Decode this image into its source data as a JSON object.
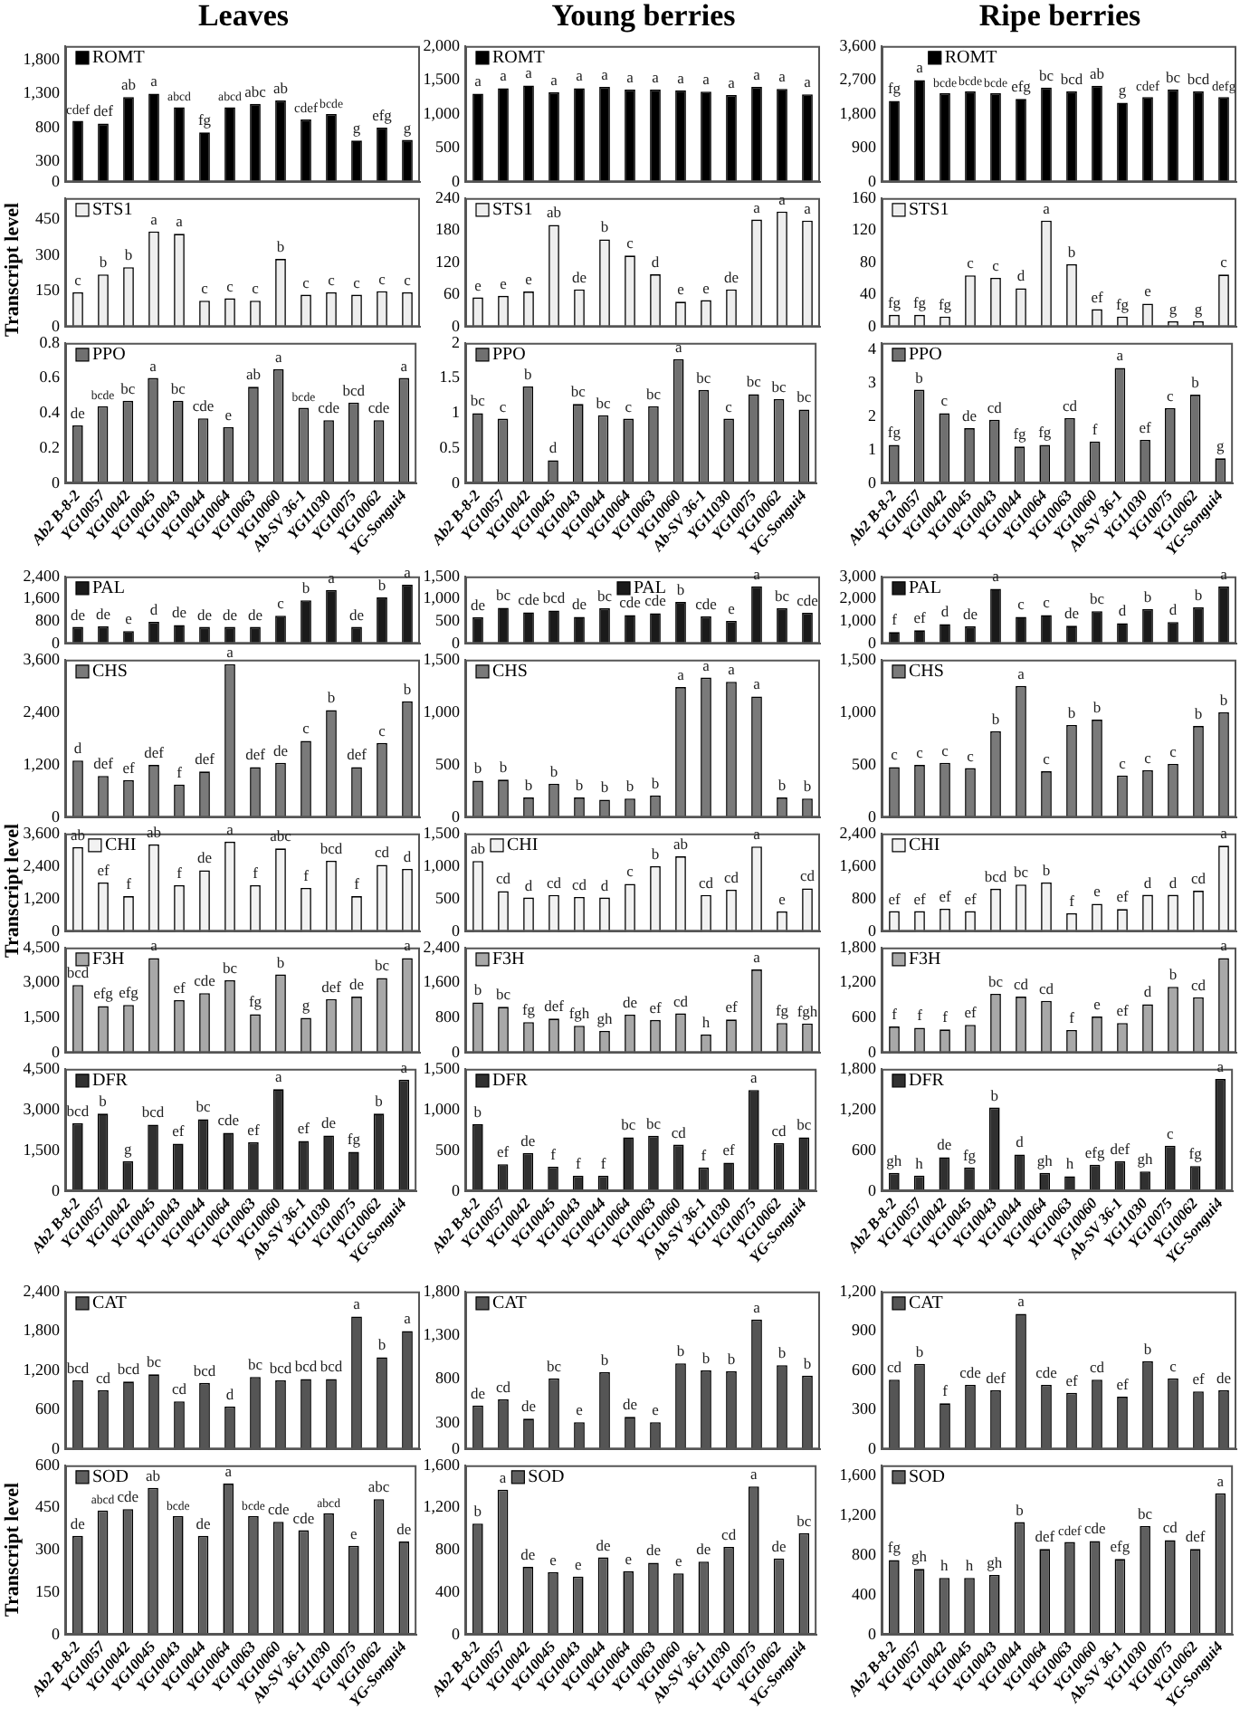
{
  "chart_data": [
    {
      "type": "bar",
      "title": "Leaves",
      "categories": [
        null,
        null,
        null,
        null,
        null,
        null,
        null,
        null,
        null,
        null,
        null,
        null,
        null,
        null
      ],
      "series": [
        {
          "name": "ROMT",
          "color": "#000000",
          "values": [
            900,
            860,
            1250,
            1300,
            1100,
            730,
            1100,
            1150,
            1200,
            920,
            1000,
            610,
            800,
            620
          ],
          "value_labels": [
            "cdef",
            "def",
            "ab",
            "a",
            "abcd",
            "fg",
            "abcd",
            "abc",
            "ab",
            "cdef",
            "bcde",
            "g",
            "efg",
            "g"
          ]
        }
      ],
      "ylim": [
        0,
        2000
      ],
      "yticks": [
        0,
        300,
        800,
        {
          "value": 1300,
          "label": "1,300"
        },
        {
          "value": 1800,
          "label": "1,800"
        }
      ],
      "legend": "top left"
    },
    {
      "type": "bar",
      "title": "Young berries",
      "categories": [
        null,
        null,
        null,
        null,
        null,
        null,
        null,
        null,
        null,
        null,
        null,
        null,
        null,
        null
      ],
      "series": [
        {
          "name": "ROMT",
          "color": "#000000",
          "values": [
            1300,
            1380,
            1420,
            1320,
            1380,
            1400,
            1360,
            1360,
            1350,
            1330,
            1280,
            1400,
            1370,
            1290
          ],
          "value_labels": [
            "a",
            "a",
            "a",
            "a",
            "a",
            "a",
            "a",
            "a",
            "a",
            "a",
            "a",
            "a",
            "a",
            "a"
          ]
        }
      ],
      "ylim": [
        0,
        2000
      ],
      "yticks": [
        0,
        500,
        {
          "value": 1000,
          "label": "1,000"
        },
        {
          "value": 1500,
          "label": "1,500"
        },
        {
          "value": 2000,
          "label": "2,000"
        }
      ],
      "legend": "top left"
    },
    {
      "type": "bar",
      "title": "Ripe berries",
      "categories": [
        null,
        null,
        null,
        null,
        null,
        null,
        null,
        null,
        null,
        null,
        null,
        null,
        null,
        null
      ],
      "series": [
        {
          "name": "ROMT",
          "color": "#000000",
          "values": [
            2150,
            2700,
            2350,
            2400,
            2350,
            2200,
            2500,
            2400,
            2550,
            2100,
            2250,
            2450,
            2400,
            2250
          ],
          "value_labels": [
            "fg",
            "a",
            "bcde",
            "bcde",
            "bcde",
            "efg",
            "bc",
            "bcd",
            "ab",
            "g",
            "cdef",
            "bc",
            "bcd",
            "defg"
          ]
        }
      ],
      "ylim": [
        0,
        3600
      ],
      "yticks": [
        0,
        900,
        {
          "value": 1800,
          "label": "1,800"
        },
        {
          "value": 2700,
          "label": "2,700"
        },
        {
          "value": 3600,
          "label": "3,600"
        }
      ],
      "legend": "top left"
    },
    {
      "type": "bar",
      "ylabel": "Transcript level",
      "categories": [
        null,
        null,
        null,
        null,
        null,
        null,
        null,
        null,
        null,
        null,
        null,
        null,
        null,
        null
      ],
      "series": [
        {
          "name": "STS1",
          "color": "#eeeeee",
          "values": [
            145,
            220,
            250,
            400,
            390,
            110,
            120,
            110,
            285,
            135,
            145,
            135,
            150,
            145
          ],
          "value_labels": [
            "c",
            "b",
            "b",
            "a",
            "a",
            "c",
            "c",
            "c",
            "b",
            "c",
            "c",
            "c",
            "c",
            "c"
          ]
        }
      ],
      "ylim": [
        0,
        540
      ],
      "yticks": [
        0,
        150,
        300,
        450
      ],
      "legend": "top left"
    },
    {
      "type": "bar",
      "categories": [
        null,
        null,
        null,
        null,
        null,
        null,
        null,
        null,
        null,
        null,
        null,
        null,
        null,
        null
      ],
      "series": [
        {
          "name": "STS1",
          "color": "#eeeeee",
          "values": [
            55,
            58,
            66,
            190,
            70,
            163,
            133,
            98,
            47,
            50,
            70,
            200,
            215,
            198
          ],
          "value_labels": [
            "e",
            "e",
            "e",
            "ab",
            "de",
            "b",
            "c",
            "d",
            "e",
            "e",
            "de",
            "a",
            "a",
            "a"
          ]
        }
      ],
      "ylim": [
        0,
        240
      ],
      "yticks": [
        0,
        60,
        120,
        180,
        240
      ],
      "legend": "top left"
    },
    {
      "type": "bar",
      "categories": [
        null,
        null,
        null,
        null,
        null,
        null,
        null,
        null,
        null,
        null,
        null,
        null,
        null,
        null
      ],
      "series": [
        {
          "name": "STS1",
          "color": "#eeeeee",
          "values": [
            15,
            15,
            13,
            64,
            61,
            48,
            132,
            78,
            22,
            13,
            29,
            7,
            7,
            65
          ],
          "value_labels": [
            "fg",
            "fg",
            "fg",
            "c",
            "c",
            "d",
            "a",
            "b",
            "ef",
            "fg",
            "e",
            "g",
            "g",
            "c"
          ]
        }
      ],
      "ylim": [
        0,
        160
      ],
      "yticks": [
        0,
        40,
        80,
        120,
        160
      ],
      "legend": "top left"
    },
    {
      "type": "bar",
      "categories": [
        "Ab2 B-8-2",
        "YG10057",
        "YG10042",
        "YG10045",
        "YG10043",
        "YG10044",
        "YG10064",
        "YG10063",
        "YG10060",
        "Ab-SV 36-1",
        "YG11030",
        "YG10075",
        "YG10062",
        "YG-Songui4"
      ],
      "series": [
        {
          "name": "PPO",
          "color": "#707070",
          "values": [
            0.33,
            0.44,
            0.47,
            0.6,
            0.47,
            0.37,
            0.32,
            0.55,
            0.65,
            0.43,
            0.36,
            0.46,
            0.36,
            0.6
          ],
          "value_labels": [
            "de",
            "bcde",
            "bc",
            "a",
            "bc",
            "cde",
            "e",
            "ab",
            "a",
            "bcde",
            "cde",
            "bcd",
            "cde",
            "a"
          ]
        }
      ],
      "ylim": [
        0,
        0.8
      ],
      "yticks": [
        0,
        0.2,
        0.4,
        0.6,
        0.8
      ],
      "legend": "top left"
    },
    {
      "type": "bar",
      "categories": [
        "Ab2 B-8-2",
        "YG10057",
        "YG10042",
        "YG10045",
        "YG10043",
        "YG10044",
        "YG10064",
        "YG10063",
        "YG10060",
        "Ab-SV 36-1",
        "YG11030",
        "YG10075",
        "YG10062",
        "YG-Songui4"
      ],
      "series": [
        {
          "name": "PPO",
          "color": "#707070",
          "values": [
            1.0,
            0.92,
            1.38,
            0.33,
            1.13,
            0.97,
            0.92,
            1.1,
            1.77,
            1.33,
            0.92,
            1.27,
            1.2,
            1.05
          ],
          "value_labels": [
            "bc",
            "c",
            "b",
            "d",
            "bc",
            "bc",
            "c",
            "bc",
            "a",
            "bc",
            "c",
            "bc",
            "bc",
            "bc"
          ]
        }
      ],
      "ylim": [
        0,
        2
      ],
      "yticks": [
        0,
        0.5,
        1,
        1.5,
        2
      ],
      "legend": "top left"
    },
    {
      "type": "bar",
      "categories": [
        "Ab2 B-8-2",
        "YG10057",
        "YG10042",
        "YG10045",
        "YG10043",
        "YG10044",
        "YG10064",
        "YG10063",
        "YG10060",
        "Ab-SV 36-1",
        "YG11030",
        "YG10075",
        "YG10062",
        "YG-Songui4"
      ],
      "series": [
        {
          "name": "PPO",
          "color": "#707070",
          "values": [
            1.15,
            2.8,
            2.1,
            1.65,
            1.9,
            1.1,
            1.15,
            1.95,
            1.25,
            3.45,
            1.3,
            2.25,
            2.65,
            0.75
          ],
          "value_labels": [
            "fg",
            "b",
            "c",
            "de",
            "cd",
            "fg",
            "fg",
            "cd",
            "f",
            "a",
            "ef",
            "c",
            "b",
            "g"
          ]
        }
      ],
      "ylim": [
        0,
        4.2
      ],
      "yticks": [
        0,
        1,
        2,
        3,
        4
      ],
      "legend": "top left"
    },
    {
      "type": "bar",
      "categories": [
        null,
        null,
        null,
        null,
        null,
        null,
        null,
        null,
        null,
        null,
        null,
        null,
        null,
        null
      ],
      "series": [
        {
          "name": "PAL",
          "color": "#1a1a1a",
          "values": [
            600,
            620,
            450,
            780,
            670,
            600,
            600,
            600,
            1000,
            1550,
            1920,
            600,
            1650,
            2100
          ],
          "value_labels": [
            "de",
            "de",
            "e",
            "d",
            "de",
            "de",
            "de",
            "de",
            "c",
            "b",
            "a",
            "de",
            "b",
            "a"
          ]
        }
      ],
      "ylim": [
        0,
        2400
      ],
      "yticks": [
        0,
        800,
        {
          "value": 1600,
          "label": "1,600"
        },
        {
          "value": 2400,
          "label": "2,400"
        }
      ],
      "legend": "top left"
    },
    {
      "type": "bar",
      "categories": [
        null,
        null,
        null,
        null,
        null,
        null,
        null,
        null,
        null,
        null,
        null,
        null,
        null,
        null
      ],
      "series": [
        {
          "name": "PAL",
          "color": "#1a1a1a",
          "values": [
            590,
            800,
            700,
            740,
            600,
            790,
            640,
            680,
            930,
            610,
            510,
            1280,
            790,
            690
          ],
          "value_labels": [
            "de",
            "bc",
            "cde",
            "bcd",
            "de",
            "bc",
            "cde",
            "cde",
            "b",
            "cde",
            "e",
            "a",
            "bc",
            "cde"
          ]
        }
      ],
      "ylim": [
        0,
        1500
      ],
      "yticks": [
        0,
        500,
        {
          "value": 1000,
          "label": "1,000"
        },
        {
          "value": 1500,
          "label": "1,500"
        }
      ],
      "legend": "top left"
    },
    {
      "type": "bar",
      "categories": [
        null,
        null,
        null,
        null,
        null,
        null,
        null,
        null,
        null,
        null,
        null,
        null,
        null,
        null
      ],
      "series": [
        {
          "name": "PAL",
          "color": "#1a1a1a",
          "values": [
            520,
            600,
            880,
            780,
            2450,
            1200,
            1280,
            800,
            1450,
            920,
            1550,
            970,
            1620,
            2550
          ],
          "value_labels": [
            "f",
            "ef",
            "d",
            "de",
            "a",
            "c",
            "c",
            "de",
            "bc",
            "d",
            "b",
            "d",
            "b",
            "a"
          ]
        }
      ],
      "ylim": [
        0,
        3000
      ],
      "yticks": [
        0,
        {
          "value": 1000,
          "label": "1,000"
        },
        {
          "value": 2000,
          "label": "2,000"
        },
        {
          "value": 3000,
          "label": "3,000"
        }
      ],
      "legend": "top left"
    },
    {
      "type": "bar",
      "categories": [
        null,
        null,
        null,
        null,
        null,
        null,
        null,
        null,
        null,
        null,
        null,
        null,
        null,
        null
      ],
      "series": [
        {
          "name": "CHS",
          "color": "#7a7a7a",
          "values": [
            1300,
            950,
            850,
            1200,
            750,
            1050,
            3500,
            1150,
            1250,
            1750,
            2450,
            1150,
            1700,
            2650
          ],
          "value_labels": [
            "d",
            "def",
            "ef",
            "def",
            "f",
            "def",
            "a",
            "def",
            "de",
            "c",
            "b",
            "def",
            "c",
            "b"
          ]
        }
      ],
      "ylim": [
        0,
        3600
      ],
      "yticks": [
        0,
        {
          "value": 1200,
          "label": "1,200"
        },
        {
          "value": 2400,
          "label": "2,400"
        },
        {
          "value": 3600,
          "label": "3,600"
        }
      ],
      "legend": "top left"
    },
    {
      "type": "bar",
      "categories": [
        null,
        null,
        null,
        null,
        null,
        null,
        null,
        null,
        null,
        null,
        null,
        null,
        null,
        null
      ],
      "series": [
        {
          "name": "CHS",
          "color": "#7a7a7a",
          "values": [
            350,
            360,
            190,
            320,
            190,
            170,
            180,
            210,
            1240,
            1330,
            1290,
            1150,
            190,
            180
          ],
          "value_labels": [
            "b",
            "b",
            "b",
            "b",
            "b",
            "b",
            "b",
            "b",
            "a",
            "a",
            "a",
            "a",
            "b",
            "b"
          ]
        }
      ],
      "ylim": [
        0,
        1500
      ],
      "yticks": [
        0,
        500,
        {
          "value": 1000,
          "label": "1,000"
        },
        {
          "value": 1500,
          "label": "1,500"
        }
      ],
      "legend": "top left"
    },
    {
      "type": "bar",
      "categories": [
        null,
        null,
        null,
        null,
        null,
        null,
        null,
        null,
        null,
        null,
        null,
        null,
        null,
        null
      ],
      "series": [
        {
          "name": "CHS",
          "color": "#7a7a7a",
          "values": [
            480,
            500,
            520,
            470,
            820,
            1250,
            440,
            880,
            930,
            400,
            450,
            510,
            870,
            1000
          ],
          "value_labels": [
            "c",
            "c",
            "c",
            "c",
            "b",
            "a",
            "c",
            "b",
            "b",
            "c",
            "c",
            "c",
            "b",
            "b"
          ]
        }
      ],
      "ylim": [
        0,
        1500
      ],
      "yticks": [
        0,
        500,
        {
          "value": 1000,
          "label": "1,000"
        },
        {
          "value": 1500,
          "label": "1,500"
        }
      ],
      "legend": "top left"
    },
    {
      "type": "bar",
      "ylabel": "Transcript level",
      "categories": [
        null,
        null,
        null,
        null,
        null,
        null,
        null,
        null,
        null,
        null,
        null,
        null,
        null,
        null
      ],
      "series": [
        {
          "name": "CHI",
          "color": "#f2f2f2",
          "values": [
            3100,
            1800,
            1300,
            3200,
            1700,
            2250,
            3300,
            1700,
            3050,
            1600,
            2600,
            1300,
            2450,
            2300
          ],
          "value_labels": [
            "ab",
            "ef",
            "f",
            "ab",
            "f",
            "de",
            "a",
            "f",
            "abc",
            "f",
            "bcd",
            "f",
            "cd",
            "d"
          ]
        }
      ],
      "ylim": [
        0,
        3600
      ],
      "yticks": [
        0,
        {
          "value": 1200,
          "label": "1,200"
        },
        {
          "value": 2400,
          "label": "2,400"
        },
        {
          "value": 3600,
          "label": "3,600"
        }
      ],
      "legend": "top left"
    },
    {
      "type": "bar",
      "categories": [
        null,
        null,
        null,
        null,
        null,
        null,
        null,
        null,
        null,
        null,
        null,
        null,
        null,
        null
      ],
      "series": [
        {
          "name": "CHI",
          "color": "#f2f2f2",
          "values": [
            1080,
            620,
            520,
            560,
            530,
            520,
            730,
            1000,
            1150,
            560,
            640,
            1300,
            310,
            660
          ],
          "value_labels": [
            "ab",
            "cd",
            "d",
            "cd",
            "cd",
            "d",
            "c",
            "b",
            "ab",
            "cd",
            "cd",
            "a",
            "e",
            "cd"
          ]
        }
      ],
      "ylim": [
        0,
        1500
      ],
      "yticks": [
        0,
        500,
        {
          "value": 1000,
          "label": "1,000"
        },
        {
          "value": 1500,
          "label": "1,500"
        }
      ],
      "legend": "top left"
    },
    {
      "type": "bar",
      "categories": [
        null,
        null,
        null,
        null,
        null,
        null,
        null,
        null,
        null,
        null,
        null,
        null,
        null,
        null
      ],
      "series": [
        {
          "name": "CHI",
          "color": "#f2f2f2",
          "values": [
            500,
            500,
            560,
            500,
            1050,
            1150,
            1200,
            450,
            680,
            550,
            900,
            900,
            1000,
            2100
          ],
          "value_labels": [
            "ef",
            "ef",
            "ef",
            "ef",
            "bcd",
            "bc",
            "b",
            "f",
            "e",
            "ef",
            "d",
            "d",
            "cd",
            "a"
          ]
        }
      ],
      "ylim": [
        0,
        2400
      ],
      "yticks": [
        0,
        800,
        {
          "value": 1600,
          "label": "1,600"
        },
        {
          "value": 2400,
          "label": "2,400"
        }
      ],
      "legend": "top left"
    },
    {
      "type": "bar",
      "categories": [
        null,
        null,
        null,
        null,
        null,
        null,
        null,
        null,
        null,
        null,
        null,
        null,
        null,
        null
      ],
      "series": [
        {
          "name": "F3H",
          "color": "#a8a8a8",
          "values": [
            2900,
            2000,
            2050,
            4050,
            2250,
            2550,
            3100,
            1650,
            3350,
            1500,
            2300,
            2400,
            3200,
            4050
          ],
          "value_labels": [
            "bcd",
            "efg",
            "efg",
            "a",
            "ef",
            "cde",
            "bc",
            "fg",
            "b",
            "g",
            "def",
            "de",
            "bc",
            "a"
          ]
        }
      ],
      "ylim": [
        0,
        4500
      ],
      "yticks": [
        0,
        {
          "value": 1500,
          "label": "1,500"
        },
        {
          "value": 3000,
          "label": "3,000"
        },
        {
          "value": 4500,
          "label": "4,500"
        }
      ],
      "legend": "top left"
    },
    {
      "type": "bar",
      "categories": [
        null,
        null,
        null,
        null,
        null,
        null,
        null,
        null,
        null,
        null,
        null,
        null,
        null,
        null
      ],
      "series": [
        {
          "name": "F3H",
          "color": "#a8a8a8",
          "values": [
            1150,
            1050,
            700,
            780,
            620,
            500,
            870,
            750,
            900,
            420,
            760,
            1900,
            680,
            670
          ],
          "value_labels": [
            "b",
            "bc",
            "fg",
            "def",
            "fgh",
            "gh",
            "de",
            "ef",
            "cd",
            "h",
            "ef",
            "a",
            "fg",
            "fgh"
          ]
        }
      ],
      "ylim": [
        0,
        2400
      ],
      "yticks": [
        0,
        800,
        {
          "value": 1600,
          "label": "1,600"
        },
        {
          "value": 2400,
          "label": "2,400"
        }
      ],
      "legend": "top left"
    },
    {
      "type": "bar",
      "categories": [
        null,
        null,
        null,
        null,
        null,
        null,
        null,
        null,
        null,
        null,
        null,
        null,
        null,
        null
      ],
      "series": [
        {
          "name": "F3H",
          "color": "#a8a8a8",
          "values": [
            450,
            430,
            400,
            480,
            1010,
            960,
            890,
            390,
            620,
            510,
            830,
            1130,
            950,
            1620
          ],
          "value_labels": [
            "f",
            "f",
            "f",
            "ef",
            "bc",
            "cd",
            "cd",
            "f",
            "e",
            "ef",
            "d",
            "b",
            "cd",
            "a"
          ]
        }
      ],
      "ylim": [
        0,
        1800
      ],
      "yticks": [
        0,
        600,
        {
          "value": 1200,
          "label": "1,200"
        },
        {
          "value": 1800,
          "label": "1,800"
        }
      ],
      "legend": "top left"
    },
    {
      "type": "bar",
      "categories": [
        "Ab2 B-8-2",
        "YG10057",
        "YG10042",
        "YG10045",
        "YG10043",
        "YG10044",
        "YG10064",
        "YG10063",
        "YG10060",
        "Ab-SV 36-1",
        "YG11030",
        "YG10075",
        "YG10062",
        "YG-Songui4"
      ],
      "series": [
        {
          "name": "DFR",
          "color": "#303030",
          "values": [
            2500,
            2850,
            1100,
            2450,
            1750,
            2650,
            2150,
            1800,
            3750,
            1850,
            2050,
            1450,
            2850,
            4100
          ],
          "value_labels": [
            "bcd",
            "b",
            "g",
            "bcd",
            "ef",
            "bc",
            "cde",
            "ef",
            "a",
            "ef",
            "de",
            "fg",
            "b",
            "a"
          ]
        }
      ],
      "ylim": [
        0,
        4500
      ],
      "yticks": [
        0,
        {
          "value": 1500,
          "label": "1,500"
        },
        {
          "value": 3000,
          "label": "3,000"
        },
        {
          "value": 4500,
          "label": "4,500"
        }
      ],
      "legend": "top left"
    },
    {
      "type": "bar",
      "categories": [
        "Ab2 B-8-2",
        "YG10057",
        "YG10042",
        "YG10045",
        "YG10043",
        "YG10044",
        "YG10064",
        "YG10063",
        "YG10060",
        "Ab-SV 36-1",
        "YG11030",
        "YG10075",
        "YG10062",
        "YG-Songui4"
      ],
      "series": [
        {
          "name": "DFR",
          "color": "#303030",
          "values": [
            820,
            330,
            470,
            300,
            190,
            190,
            660,
            680,
            570,
            290,
            350,
            1240,
            590,
            660
          ],
          "value_labels": [
            "b",
            "ef",
            "de",
            "f",
            "f",
            "f",
            "bc",
            "bc",
            "cd",
            "f",
            "ef",
            "a",
            "cd",
            "bc"
          ]
        }
      ],
      "ylim": [
        0,
        1500
      ],
      "yticks": [
        0,
        500,
        {
          "value": 1000,
          "label": "1,000"
        },
        {
          "value": 1500,
          "label": "1,500"
        }
      ],
      "legend": "top left"
    },
    {
      "type": "bar",
      "categories": [
        "Ab2 B-8-2",
        "YG10057",
        "YG10042",
        "YG10045",
        "YG10043",
        "YG10044",
        "YG10064",
        "YG10063",
        "YG10060",
        "Ab-SV 36-1",
        "YG11030",
        "YG10075",
        "YG10062",
        "YG-Songui4"
      ],
      "series": [
        {
          "name": "DFR",
          "color": "#303030",
          "values": [
            270,
            230,
            500,
            350,
            1230,
            540,
            270,
            220,
            390,
            440,
            290,
            670,
            370,
            1650
          ],
          "value_labels": [
            "gh",
            "h",
            "de",
            "fg",
            "b",
            "d",
            "gh",
            "h",
            "efg",
            "def",
            "gh",
            "c",
            "fg",
            "a"
          ]
        }
      ],
      "ylim": [
        0,
        1800
      ],
      "yticks": [
        0,
        600,
        {
          "value": 1200,
          "label": "1,200"
        },
        {
          "value": 1800,
          "label": "1,800"
        }
      ],
      "legend": "top left"
    },
    {
      "type": "bar",
      "categories": [
        null,
        null,
        null,
        null,
        null,
        null,
        null,
        null,
        null,
        null,
        null,
        null,
        null,
        null
      ],
      "series": [
        {
          "name": "CAT",
          "color": "#555555",
          "values": [
            1050,
            900,
            1030,
            1140,
            730,
            1010,
            650,
            1100,
            1050,
            1070,
            1070,
            2020,
            1400,
            1800
          ],
          "value_labels": [
            "bcd",
            "cd",
            "bcd",
            "bc",
            "cd",
            "bcd",
            "d",
            "bc",
            "bcd",
            "bcd",
            "bcd",
            "a",
            "b",
            "a"
          ]
        }
      ],
      "ylim": [
        0,
        2400
      ],
      "yticks": [
        0,
        600,
        {
          "value": 1200,
          "label": "1,200"
        },
        {
          "value": 1800,
          "label": "1,800"
        },
        {
          "value": 2400,
          "label": "2,400"
        }
      ],
      "legend": "top left"
    },
    {
      "type": "bar",
      "categories": [
        null,
        null,
        null,
        null,
        null,
        null,
        null,
        null,
        null,
        null,
        null,
        null,
        null,
        null
      ],
      "series": [
        {
          "name": "CAT",
          "color": "#555555",
          "values": [
            500,
            570,
            350,
            810,
            310,
            880,
            370,
            310,
            980,
            900,
            890,
            1480,
            960,
            840
          ],
          "value_labels": [
            "de",
            "cd",
            "de",
            "bc",
            "e",
            "b",
            "de",
            "e",
            "b",
            "b",
            "b",
            "a",
            "b",
            "b"
          ]
        }
      ],
      "ylim": [
        0,
        1800
      ],
      "yticks": [
        0,
        300,
        800,
        {
          "value": 1300,
          "label": "1,300"
        },
        {
          "value": 1800,
          "label": "1,800"
        }
      ],
      "legend": "top left"
    },
    {
      "type": "bar",
      "categories": [
        null,
        null,
        null,
        null,
        null,
        null,
        null,
        null,
        null,
        null,
        null,
        null,
        null,
        null
      ],
      "series": [
        {
          "name": "CAT",
          "color": "#555555",
          "values": [
            530,
            650,
            350,
            490,
            450,
            1030,
            490,
            430,
            530,
            400,
            670,
            540,
            440,
            450
          ],
          "value_labels": [
            "cd",
            "b",
            "f",
            "cde",
            "def",
            "a",
            "cde",
            "ef",
            "cd",
            "ef",
            "b",
            "c",
            "ef",
            "de"
          ]
        }
      ],
      "ylim": [
        0,
        1200
      ],
      "yticks": [
        0,
        300,
        600,
        900,
        {
          "value": 1200,
          "label": "1,200"
        }
      ],
      "legend": "top left"
    },
    {
      "type": "bar",
      "ylabel": "Transcript level",
      "categories": [
        "Ab2 B-8-2",
        "YG10057",
        "YG10042",
        "YG10045",
        "YG10043",
        "YG10044",
        "YG10064",
        "YG10063",
        "YG10060",
        "Ab-SV 36-1",
        "YG11030",
        "YG10075",
        "YG10062",
        "YG-Songui4"
      ],
      "series": [
        {
          "name": "SOD",
          "color": "#5f5f5f",
          "values": [
            350,
            440,
            445,
            520,
            420,
            350,
            535,
            420,
            400,
            370,
            430,
            315,
            480,
            330
          ],
          "value_labels": [
            "de",
            "abcd",
            "cde",
            "ab",
            "bcde",
            "de",
            "a",
            "bcde",
            "cde",
            "cde",
            "abcd",
            "e",
            "abc",
            "de"
          ]
        }
      ],
      "ylim": [
        0,
        600
      ],
      "yticks": [
        0,
        150,
        300,
        450,
        600
      ],
      "legend": "top left"
    },
    {
      "type": "bar",
      "categories": [
        "Ab2 B-8-2",
        "YG10057",
        "YG10042",
        "YG10045",
        "YG10043",
        "YG10044",
        "YG10064",
        "YG10063",
        "YG10060",
        "Ab-SV 36-1",
        "YG11030",
        "YG10075",
        "YG10062",
        "YG-Songui4"
      ],
      "series": [
        {
          "name": "SOD",
          "color": "#5f5f5f",
          "values": [
            1050,
            1370,
            640,
            590,
            550,
            730,
            600,
            680,
            580,
            690,
            830,
            1400,
            720,
            960
          ],
          "value_labels": [
            "b",
            "a",
            "de",
            "e",
            "e",
            "de",
            "e",
            "de",
            "e",
            "de",
            "cd",
            "a",
            "de",
            "bc"
          ]
        }
      ],
      "ylim": [
        0,
        1600
      ],
      "yticks": [
        0,
        400,
        800,
        {
          "value": 1200,
          "label": "1,200"
        },
        {
          "value": 1600,
          "label": "1,600"
        }
      ],
      "legend": "top left"
    },
    {
      "type": "bar",
      "categories": [
        "Ab2 B-8-2",
        "YG10057",
        "YG10042",
        "YG10045",
        "YG10043",
        "YG10044",
        "YG10064",
        "YG10063",
        "YG10060",
        "Ab-SV 36-1",
        "YG11030",
        "YG10075",
        "YG10062",
        "YG-Songui4"
      ],
      "series": [
        {
          "name": "SOD",
          "color": "#5f5f5f",
          "values": [
            750,
            660,
            570,
            570,
            600,
            1130,
            860,
            930,
            940,
            760,
            1090,
            950,
            860,
            1420
          ],
          "value_labels": [
            "fg",
            "gh",
            "h",
            "h",
            "gh",
            "b",
            "def",
            "cdef",
            "cde",
            "efg",
            "bc",
            "cd",
            "def",
            "a"
          ]
        }
      ],
      "ylim": [
        0,
        1700
      ],
      "yticks": [
        0,
        400,
        800,
        {
          "value": 1200,
          "label": "1,200"
        },
        {
          "value": 1600,
          "label": "1,600"
        }
      ],
      "legend": "top left"
    }
  ]
}
